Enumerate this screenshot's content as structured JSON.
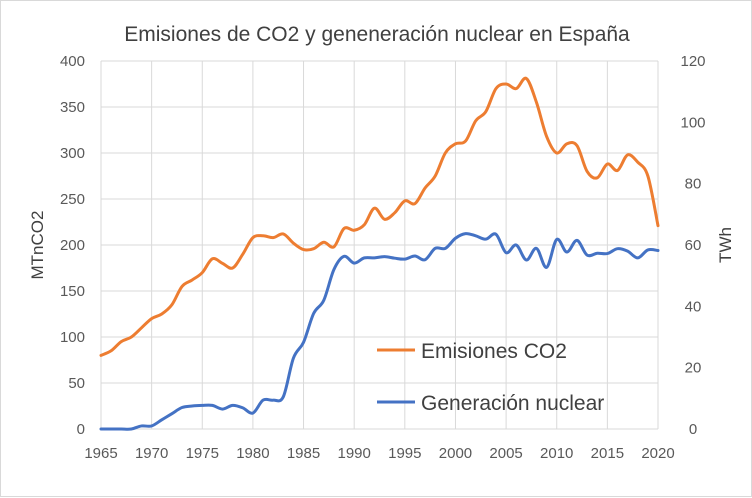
{
  "chart_data": {
    "type": "line",
    "title": "Emisiones de CO2 y geneneración nuclear en España",
    "ylabel": "MTnCO2",
    "y2label": "TWh",
    "ylim": [
      0,
      400
    ],
    "y2lim": [
      0,
      120
    ],
    "xlim": [
      1965,
      2020
    ],
    "grid": true,
    "legend": "center-right",
    "x_ticks": [
      "1965",
      "1970",
      "1975",
      "1980",
      "1985",
      "1990",
      "1995",
      "2000",
      "2005",
      "2010",
      "2015",
      "2020"
    ],
    "y_ticks": [
      "0",
      "50",
      "100",
      "150",
      "200",
      "250",
      "300",
      "350",
      "400"
    ],
    "y2_ticks": [
      "0",
      "20",
      "40",
      "60",
      "80",
      "100",
      "120"
    ],
    "x": [
      1965,
      1966,
      1967,
      1968,
      1969,
      1970,
      1971,
      1972,
      1973,
      1974,
      1975,
      1976,
      1977,
      1978,
      1979,
      1980,
      1981,
      1982,
      1983,
      1984,
      1985,
      1986,
      1987,
      1988,
      1989,
      1990,
      1991,
      1992,
      1993,
      1994,
      1995,
      1996,
      1997,
      1998,
      1999,
      2000,
      2001,
      2002,
      2003,
      2004,
      2005,
      2006,
      2007,
      2008,
      2009,
      2010,
      2011,
      2012,
      2013,
      2014,
      2015,
      2016,
      2017,
      2018,
      2019,
      2020
    ],
    "series": [
      {
        "name": "Emisiones CO2",
        "axis": "left",
        "color": "#ED7D31",
        "values": [
          80,
          85,
          95,
          100,
          110,
          120,
          125,
          135,
          155,
          162,
          170,
          185,
          180,
          175,
          190,
          208,
          210,
          208,
          212,
          202,
          195,
          196,
          203,
          198,
          218,
          216,
          222,
          240,
          228,
          235,
          248,
          245,
          262,
          275,
          300,
          310,
          313,
          335,
          345,
          370,
          375,
          370,
          381,
          355,
          318,
          300,
          310,
          308,
          280,
          273,
          288,
          281,
          298,
          290,
          275,
          221
        ]
      },
      {
        "name": "Generación nuclear",
        "axis": "right",
        "color": "#4472C4",
        "values": [
          0,
          0,
          0,
          0,
          1,
          1,
          3,
          5,
          7,
          7.5,
          7.7,
          7.7,
          6.5,
          7.7,
          6.9,
          5.2,
          9.4,
          9.4,
          10.5,
          23.1,
          28.3,
          37.7,
          42,
          52,
          56.3,
          54.1,
          55.8,
          55.8,
          56.2,
          55.7,
          55.4,
          56.4,
          55.2,
          58.9,
          58.9,
          62.2,
          63.7,
          63,
          61.9,
          63.5,
          57.5,
          60,
          55.1,
          58.9,
          52.7,
          61.8,
          57.7,
          61.5,
          56.7,
          57.3,
          57.2,
          58.8,
          58,
          55.8,
          58.4,
          58.2
        ]
      }
    ]
  }
}
